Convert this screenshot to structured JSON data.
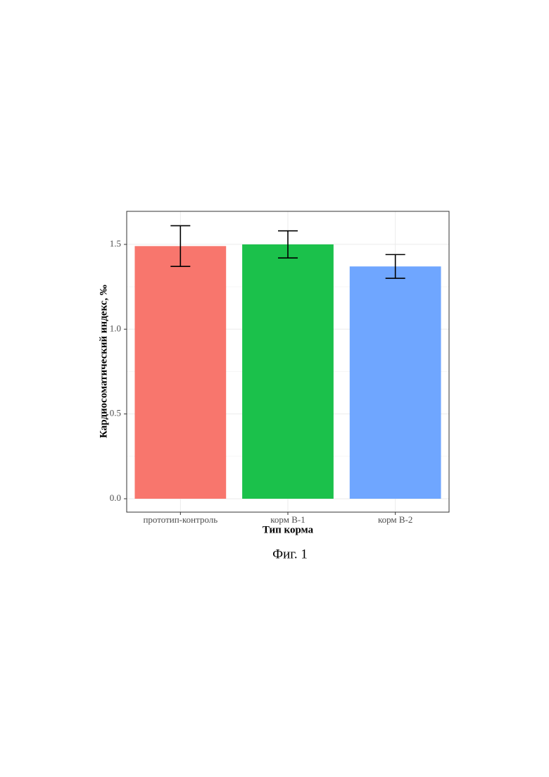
{
  "chart_data": {
    "type": "bar",
    "caption": "Фиг. 1",
    "x_label": "Тип корма",
    "y_label": "Кардиосоматический индекс, ‰",
    "categories": [
      "прототип-контроль",
      "корм В-1",
      "корм В-2"
    ],
    "values": [
      1.49,
      1.5,
      1.37
    ],
    "errors": [
      0.12,
      0.08,
      0.07
    ],
    "colors": [
      "#F8766D",
      "#1BC14B",
      "#6FA6FF"
    ],
    "ylim": [
      -0.079,
      1.695
    ],
    "yticks": [
      {
        "value": 0,
        "label": "0.0"
      },
      0.5,
      {
        "value": 1,
        "label": "1.0"
      },
      1.5
    ],
    "y_minor_ticks": [
      0.25,
      0.75,
      1.25
    ],
    "grid": true
  }
}
